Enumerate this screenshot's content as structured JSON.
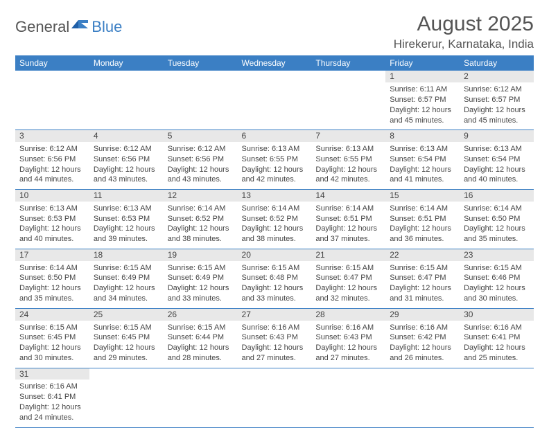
{
  "logo": {
    "text1": "General",
    "text2": "Blue"
  },
  "title": "August 2025",
  "location": "Hirekerur, Karnataka, India",
  "colors": {
    "header_bg": "#3b7fc4",
    "header_fg": "#ffffff",
    "daynum_bg": "#e8e8e8",
    "text": "#444444",
    "border": "#3b7fc4"
  },
  "weekdayHeaders": [
    "Sunday",
    "Monday",
    "Tuesday",
    "Wednesday",
    "Thursday",
    "Friday",
    "Saturday"
  ],
  "weeks": [
    [
      null,
      null,
      null,
      null,
      null,
      {
        "n": "1",
        "sr": "Sunrise: 6:11 AM",
        "ss": "Sunset: 6:57 PM",
        "d1": "Daylight: 12 hours",
        "d2": "and 45 minutes."
      },
      {
        "n": "2",
        "sr": "Sunrise: 6:12 AM",
        "ss": "Sunset: 6:57 PM",
        "d1": "Daylight: 12 hours",
        "d2": "and 45 minutes."
      }
    ],
    [
      {
        "n": "3",
        "sr": "Sunrise: 6:12 AM",
        "ss": "Sunset: 6:56 PM",
        "d1": "Daylight: 12 hours",
        "d2": "and 44 minutes."
      },
      {
        "n": "4",
        "sr": "Sunrise: 6:12 AM",
        "ss": "Sunset: 6:56 PM",
        "d1": "Daylight: 12 hours",
        "d2": "and 43 minutes."
      },
      {
        "n": "5",
        "sr": "Sunrise: 6:12 AM",
        "ss": "Sunset: 6:56 PM",
        "d1": "Daylight: 12 hours",
        "d2": "and 43 minutes."
      },
      {
        "n": "6",
        "sr": "Sunrise: 6:13 AM",
        "ss": "Sunset: 6:55 PM",
        "d1": "Daylight: 12 hours",
        "d2": "and 42 minutes."
      },
      {
        "n": "7",
        "sr": "Sunrise: 6:13 AM",
        "ss": "Sunset: 6:55 PM",
        "d1": "Daylight: 12 hours",
        "d2": "and 42 minutes."
      },
      {
        "n": "8",
        "sr": "Sunrise: 6:13 AM",
        "ss": "Sunset: 6:54 PM",
        "d1": "Daylight: 12 hours",
        "d2": "and 41 minutes."
      },
      {
        "n": "9",
        "sr": "Sunrise: 6:13 AM",
        "ss": "Sunset: 6:54 PM",
        "d1": "Daylight: 12 hours",
        "d2": "and 40 minutes."
      }
    ],
    [
      {
        "n": "10",
        "sr": "Sunrise: 6:13 AM",
        "ss": "Sunset: 6:53 PM",
        "d1": "Daylight: 12 hours",
        "d2": "and 40 minutes."
      },
      {
        "n": "11",
        "sr": "Sunrise: 6:13 AM",
        "ss": "Sunset: 6:53 PM",
        "d1": "Daylight: 12 hours",
        "d2": "and 39 minutes."
      },
      {
        "n": "12",
        "sr": "Sunrise: 6:14 AM",
        "ss": "Sunset: 6:52 PM",
        "d1": "Daylight: 12 hours",
        "d2": "and 38 minutes."
      },
      {
        "n": "13",
        "sr": "Sunrise: 6:14 AM",
        "ss": "Sunset: 6:52 PM",
        "d1": "Daylight: 12 hours",
        "d2": "and 38 minutes."
      },
      {
        "n": "14",
        "sr": "Sunrise: 6:14 AM",
        "ss": "Sunset: 6:51 PM",
        "d1": "Daylight: 12 hours",
        "d2": "and 37 minutes."
      },
      {
        "n": "15",
        "sr": "Sunrise: 6:14 AM",
        "ss": "Sunset: 6:51 PM",
        "d1": "Daylight: 12 hours",
        "d2": "and 36 minutes."
      },
      {
        "n": "16",
        "sr": "Sunrise: 6:14 AM",
        "ss": "Sunset: 6:50 PM",
        "d1": "Daylight: 12 hours",
        "d2": "and 35 minutes."
      }
    ],
    [
      {
        "n": "17",
        "sr": "Sunrise: 6:14 AM",
        "ss": "Sunset: 6:50 PM",
        "d1": "Daylight: 12 hours",
        "d2": "and 35 minutes."
      },
      {
        "n": "18",
        "sr": "Sunrise: 6:15 AM",
        "ss": "Sunset: 6:49 PM",
        "d1": "Daylight: 12 hours",
        "d2": "and 34 minutes."
      },
      {
        "n": "19",
        "sr": "Sunrise: 6:15 AM",
        "ss": "Sunset: 6:49 PM",
        "d1": "Daylight: 12 hours",
        "d2": "and 33 minutes."
      },
      {
        "n": "20",
        "sr": "Sunrise: 6:15 AM",
        "ss": "Sunset: 6:48 PM",
        "d1": "Daylight: 12 hours",
        "d2": "and 33 minutes."
      },
      {
        "n": "21",
        "sr": "Sunrise: 6:15 AM",
        "ss": "Sunset: 6:47 PM",
        "d1": "Daylight: 12 hours",
        "d2": "and 32 minutes."
      },
      {
        "n": "22",
        "sr": "Sunrise: 6:15 AM",
        "ss": "Sunset: 6:47 PM",
        "d1": "Daylight: 12 hours",
        "d2": "and 31 minutes."
      },
      {
        "n": "23",
        "sr": "Sunrise: 6:15 AM",
        "ss": "Sunset: 6:46 PM",
        "d1": "Daylight: 12 hours",
        "d2": "and 30 minutes."
      }
    ],
    [
      {
        "n": "24",
        "sr": "Sunrise: 6:15 AM",
        "ss": "Sunset: 6:45 PM",
        "d1": "Daylight: 12 hours",
        "d2": "and 30 minutes."
      },
      {
        "n": "25",
        "sr": "Sunrise: 6:15 AM",
        "ss": "Sunset: 6:45 PM",
        "d1": "Daylight: 12 hours",
        "d2": "and 29 minutes."
      },
      {
        "n": "26",
        "sr": "Sunrise: 6:15 AM",
        "ss": "Sunset: 6:44 PM",
        "d1": "Daylight: 12 hours",
        "d2": "and 28 minutes."
      },
      {
        "n": "27",
        "sr": "Sunrise: 6:16 AM",
        "ss": "Sunset: 6:43 PM",
        "d1": "Daylight: 12 hours",
        "d2": "and 27 minutes."
      },
      {
        "n": "28",
        "sr": "Sunrise: 6:16 AM",
        "ss": "Sunset: 6:43 PM",
        "d1": "Daylight: 12 hours",
        "d2": "and 27 minutes."
      },
      {
        "n": "29",
        "sr": "Sunrise: 6:16 AM",
        "ss": "Sunset: 6:42 PM",
        "d1": "Daylight: 12 hours",
        "d2": "and 26 minutes."
      },
      {
        "n": "30",
        "sr": "Sunrise: 6:16 AM",
        "ss": "Sunset: 6:41 PM",
        "d1": "Daylight: 12 hours",
        "d2": "and 25 minutes."
      }
    ],
    [
      {
        "n": "31",
        "sr": "Sunrise: 6:16 AM",
        "ss": "Sunset: 6:41 PM",
        "d1": "Daylight: 12 hours",
        "d2": "and 24 minutes."
      },
      null,
      null,
      null,
      null,
      null,
      null
    ]
  ]
}
